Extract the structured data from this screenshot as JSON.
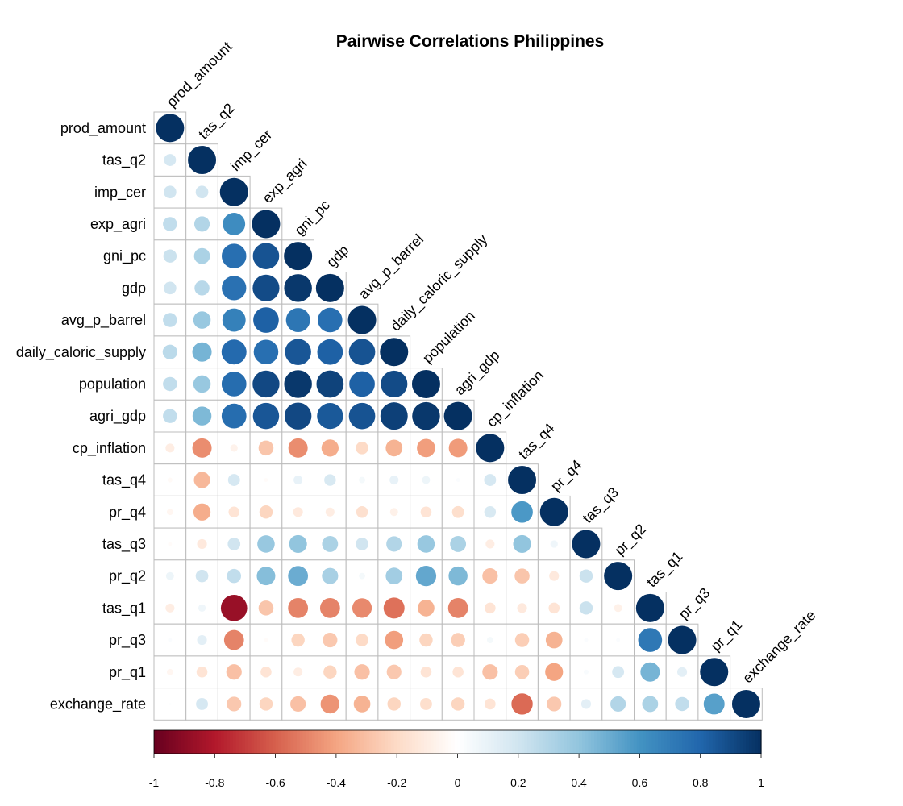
{
  "chart_data": {
    "type": "heatmap",
    "subtype": "correlation-lower-triangle-circles",
    "title": "Pairwise Correlations Philippines",
    "variables": [
      "prod_amount",
      "tas_q2",
      "imp_cer",
      "exp_agri",
      "gni_pc",
      "gdp",
      "avg_p_barrel",
      "daily_caloric_supply",
      "population",
      "agri_gdp",
      "cp_inflation",
      "tas_q4",
      "pr_q4",
      "tas_q3",
      "pr_q2",
      "tas_q1",
      "pr_q3",
      "pr_q1",
      "exchange_rate"
    ],
    "matrix": [
      [
        1
      ],
      [
        0.18,
        1
      ],
      [
        0.2,
        0.2,
        1
      ],
      [
        0.25,
        0.3,
        0.63,
        1
      ],
      [
        0.22,
        0.32,
        0.76,
        0.87,
        1
      ],
      [
        0.2,
        0.28,
        0.75,
        0.9,
        0.97,
        1
      ],
      [
        0.25,
        0.38,
        0.68,
        0.82,
        0.73,
        0.76,
        1
      ],
      [
        0.27,
        0.47,
        0.78,
        0.76,
        0.86,
        0.82,
        0.87,
        1
      ],
      [
        0.25,
        0.38,
        0.77,
        0.91,
        0.97,
        0.93,
        0.82,
        0.9,
        1
      ],
      [
        0.25,
        0.45,
        0.77,
        0.86,
        0.91,
        0.85,
        0.87,
        0.94,
        0.97,
        1
      ],
      [
        -0.1,
        -0.47,
        -0.07,
        -0.28,
        -0.47,
        -0.37,
        -0.2,
        -0.35,
        -0.42,
        -0.43,
        1
      ],
      [
        -0.03,
        -0.33,
        0.18,
        -0.02,
        0.1,
        0.17,
        0.05,
        0.1,
        0.08,
        0.02,
        0.18,
        1
      ],
      [
        -0.05,
        -0.37,
        -0.15,
        -0.22,
        -0.12,
        -0.1,
        -0.17,
        -0.08,
        -0.15,
        -0.18,
        0.17,
        0.58,
        1
      ],
      [
        -0.02,
        -0.12,
        0.2,
        0.38,
        0.4,
        0.32,
        0.2,
        0.3,
        0.38,
        0.32,
        -0.1,
        0.4,
        0.07,
        1
      ],
      [
        0.08,
        0.2,
        0.25,
        0.43,
        0.5,
        0.33,
        0.05,
        0.35,
        0.52,
        0.45,
        -0.3,
        -0.28,
        -0.12,
        0.22,
        1
      ],
      [
        -0.1,
        0.07,
        -0.87,
        -0.28,
        -0.5,
        -0.5,
        -0.48,
        -0.55,
        -0.35,
        -0.5,
        -0.15,
        -0.12,
        -0.15,
        0.22,
        -0.08,
        1
      ],
      [
        0.02,
        0.12,
        -0.5,
        -0.02,
        -0.22,
        -0.27,
        -0.2,
        -0.42,
        -0.22,
        -0.25,
        0.05,
        -0.25,
        -0.35,
        0.02,
        0.02,
        0.72,
        1
      ],
      [
        -0.05,
        -0.15,
        -0.3,
        -0.15,
        -0.1,
        -0.22,
        -0.3,
        -0.27,
        -0.15,
        -0.15,
        -0.3,
        -0.25,
        -0.4,
        0.03,
        0.18,
        0.47,
        0.12,
        1
      ],
      [
        0.01,
        0.18,
        -0.27,
        -0.22,
        -0.3,
        -0.45,
        -0.35,
        -0.22,
        -0.18,
        -0.22,
        -0.15,
        -0.57,
        -0.27,
        0.12,
        0.3,
        0.32,
        0.25,
        0.55,
        1
      ]
    ],
    "colorbar_ticks": [
      "-1",
      "-0.8",
      "-0.6",
      "-0.4",
      "-0.2",
      "0",
      "0.2",
      "0.4",
      "0.6",
      "0.8",
      "1"
    ],
    "colorbar_range": [
      -1,
      1
    ],
    "colormap": [
      "#67001f",
      "#b2182b",
      "#d6604d",
      "#f4a582",
      "#fddbc7",
      "#ffffff",
      "#d1e5f0",
      "#92c5de",
      "#4393c3",
      "#2166ac",
      "#053061"
    ],
    "grid": true,
    "legend_position": "bottom"
  }
}
